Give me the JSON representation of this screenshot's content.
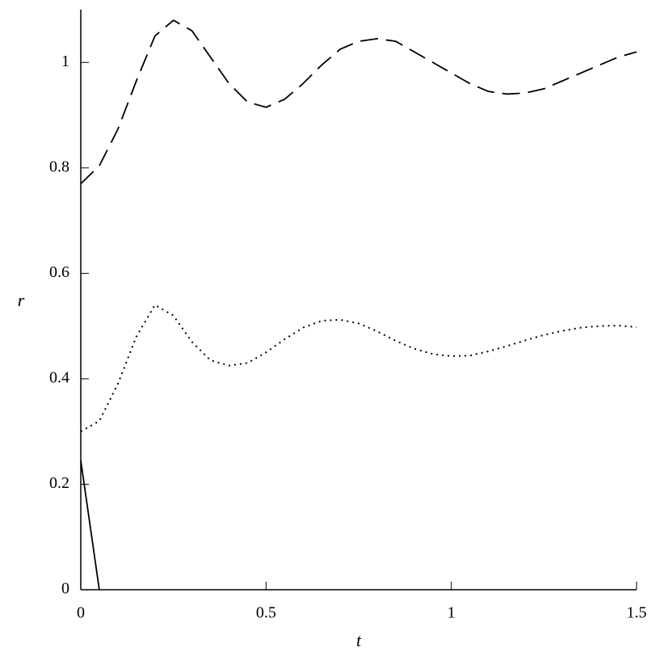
{
  "chart_data": {
    "type": "line",
    "x_label": "t",
    "y_label": "r",
    "x": [
      0,
      0.05,
      0.1,
      0.15,
      0.2,
      0.25,
      0.3,
      0.35,
      0.4,
      0.45,
      0.5,
      0.55,
      0.6,
      0.65,
      0.7,
      0.75,
      0.8,
      0.85,
      0.9,
      0.95,
      1,
      1.05,
      1.1,
      1.15,
      1.2,
      1.25,
      1.3,
      1.35,
      1.4,
      1.45,
      1.5
    ],
    "series": [
      {
        "color": "#000000",
        "dash": "dashed",
        "values": [
          0.77,
          0.804,
          0.873,
          0.965,
          1.05,
          1.08,
          1.06,
          1.01,
          0.96,
          0.925,
          0.915,
          0.93,
          0.96,
          0.995,
          1.025,
          1.04,
          1.045,
          1.04,
          1.02,
          1.0,
          0.98,
          0.96,
          0.945,
          0.94,
          0.942,
          0.95,
          0.965,
          0.98,
          0.995,
          1.01,
          1.02
        ]
      },
      {
        "color": "#000000",
        "dash": "dotted",
        "values": [
          0.3,
          0.32,
          0.39,
          0.48,
          0.54,
          0.52,
          0.47,
          0.435,
          0.425,
          0.43,
          0.45,
          0.475,
          0.497,
          0.51,
          0.512,
          0.505,
          0.49,
          0.472,
          0.457,
          0.447,
          0.443,
          0.444,
          0.452,
          0.462,
          0.473,
          0.483,
          0.491,
          0.497,
          0.5,
          0.501,
          0.498
        ]
      },
      {
        "color": "#000000",
        "dash": "solid",
        "values": [
          0.245,
          0,
          null,
          null,
          null,
          null,
          null,
          null,
          null,
          null,
          null,
          null,
          null,
          null,
          null,
          null,
          null,
          null,
          null,
          null,
          null,
          null,
          null,
          null,
          null,
          null,
          null,
          null,
          null,
          null,
          null
        ]
      }
    ],
    "xlim": [
      0,
      1.5
    ],
    "ylim": [
      0,
      1.1
    ],
    "xticks": [
      0,
      0.5,
      1,
      1.5
    ],
    "yticks": [
      0,
      0.2,
      0.4,
      0.6,
      0.8,
      1
    ]
  }
}
